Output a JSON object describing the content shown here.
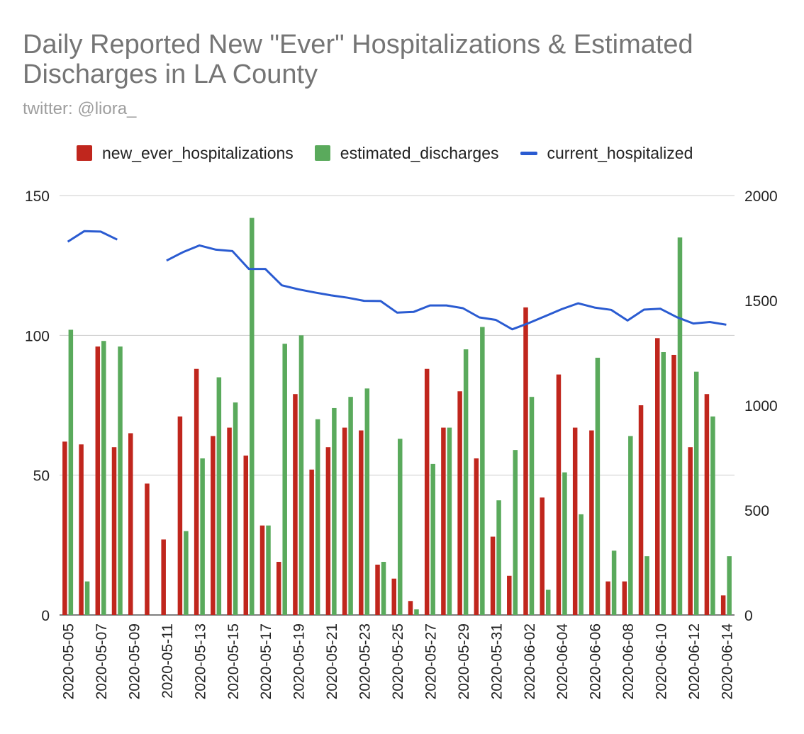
{
  "chart_data": {
    "type": "bar",
    "title": "Daily Reported New \"Ever\" Hospitalizations & Estimated Discharges in LA County",
    "subtitle": "twitter: @liora_",
    "categories": [
      "2020-05-05",
      "2020-05-06",
      "2020-05-07",
      "2020-05-08",
      "2020-05-09",
      "2020-05-10",
      "2020-05-11",
      "2020-05-12",
      "2020-05-13",
      "2020-05-14",
      "2020-05-15",
      "2020-05-16",
      "2020-05-17",
      "2020-05-18",
      "2020-05-19",
      "2020-05-20",
      "2020-05-21",
      "2020-05-22",
      "2020-05-23",
      "2020-05-24",
      "2020-05-25",
      "2020-05-26",
      "2020-05-27",
      "2020-05-28",
      "2020-05-29",
      "2020-05-30",
      "2020-05-31",
      "2020-06-01",
      "2020-06-02",
      "2020-06-03",
      "2020-06-04",
      "2020-06-05",
      "2020-06-06",
      "2020-06-07",
      "2020-06-08",
      "2020-06-09",
      "2020-06-10",
      "2020-06-11",
      "2020-06-12",
      "2020-06-13",
      "2020-06-14"
    ],
    "x_tick_labels": [
      "2020-05-05",
      "2020-05-07",
      "2020-05-09",
      "2020-05-11",
      "2020-05-13",
      "2020-05-15",
      "2020-05-17",
      "2020-05-19",
      "2020-05-21",
      "2020-05-23",
      "2020-05-25",
      "2020-05-27",
      "2020-05-29",
      "2020-05-31",
      "2020-06-02",
      "2020-06-04",
      "2020-06-06",
      "2020-06-08",
      "2020-06-10",
      "2020-06-12",
      "2020-06-14"
    ],
    "series": [
      {
        "name": "new_ever_hospitalizations",
        "kind": "bar",
        "axis": "left",
        "color": "#c0261d",
        "values": [
          62,
          61,
          96,
          60,
          65,
          47,
          27,
          71,
          88,
          64,
          67,
          57,
          32,
          19,
          79,
          52,
          60,
          67,
          66,
          18,
          13,
          5,
          88,
          67,
          80,
          56,
          28,
          14,
          110,
          42,
          86,
          67,
          66,
          12,
          12,
          75,
          99,
          93,
          60,
          79,
          7
        ]
      },
      {
        "name": "estimated_discharges",
        "kind": "bar",
        "axis": "left",
        "color": "#5aaa5c",
        "values": [
          102,
          12,
          98,
          96,
          null,
          null,
          null,
          30,
          56,
          85,
          76,
          142,
          32,
          97,
          100,
          70,
          74,
          78,
          81,
          19,
          63,
          2,
          54,
          67,
          95,
          103,
          41,
          59,
          78,
          9,
          51,
          36,
          92,
          23,
          64,
          21,
          94,
          135,
          87,
          71,
          21
        ]
      },
      {
        "name": "current_hospitalized",
        "kind": "line",
        "axis": "right",
        "color": "#2a5bd1",
        "values": [
          1780,
          1830,
          1828,
          1790,
          null,
          null,
          1690,
          1730,
          1762,
          1742,
          1735,
          1650,
          1650,
          1572,
          1553,
          1538,
          1524,
          1513,
          1498,
          1497,
          1442,
          1445,
          1476,
          1476,
          1463,
          1419,
          1407,
          1362,
          1392,
          1425,
          1458,
          1486,
          1466,
          1455,
          1404,
          1456,
          1460,
          1420,
          1390,
          1397,
          1384
        ]
      }
    ],
    "y_left": {
      "min": 0,
      "max": 150,
      "ticks": [
        "0",
        "50",
        "100",
        "150"
      ]
    },
    "y_right": {
      "min": 0,
      "max": 2000,
      "ticks": [
        "0",
        "500",
        "1000",
        "1500",
        "2000"
      ]
    },
    "legend_position": "top",
    "grid": true
  }
}
